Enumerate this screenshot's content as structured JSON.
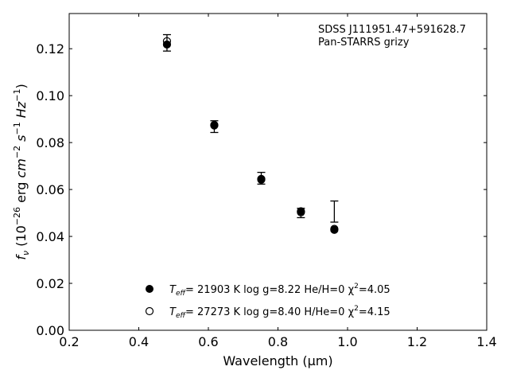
{
  "chart_data": {
    "type": "scatter",
    "title": "",
    "xlabel": "Wavelength (µm)",
    "ylabel": "f_ν (10^-26 erg cm^-2 s^-1 Hz^-1)",
    "xlim": [
      0.2,
      1.4
    ],
    "ylim": [
      0.0,
      0.135
    ],
    "xticks": [
      "0.2",
      "0.4",
      "0.6",
      "0.8",
      "1.0",
      "1.2",
      "1.4"
    ],
    "yticks": [
      "0.00",
      "0.02",
      "0.04",
      "0.06",
      "0.08",
      "0.10",
      "0.12"
    ],
    "grid": false,
    "legend_position": "bottom-center",
    "annotations": [
      "SDSS J111951.47+591628.7",
      "Pan-STARRS grizy"
    ],
    "observed": {
      "x": [
        0.481,
        0.617,
        0.752,
        0.866,
        0.962
      ],
      "y": [
        0.1225,
        0.0868,
        0.0648,
        0.05,
        0.0506
      ],
      "yerr": [
        0.0035,
        0.0025,
        0.0025,
        0.002,
        0.0045
      ]
    },
    "series": [
      {
        "name": "T_eff= 21903 K  log g=8.22  He/H=0  χ²=4.05",
        "marker": "filled-circle",
        "x": [
          0.481,
          0.617,
          0.752,
          0.866,
          0.962
        ],
        "y": [
          0.1218,
          0.0873,
          0.0645,
          0.0507,
          0.0428
        ]
      },
      {
        "name": "T_eff= 27273 K  log g=8.40  H/He=0  χ²=4.15",
        "marker": "open-circle",
        "x": [
          0.481,
          0.617,
          0.752,
          0.866,
          0.962
        ],
        "y": [
          0.1232,
          0.0875,
          0.0642,
          0.0503,
          0.0432
        ]
      }
    ]
  },
  "legend": [
    {
      "prefix": "T",
      "sub": "eff",
      "text": "= 21903 K  log g=8.22  He/H=0  χ",
      "sup": "2",
      "tail": "=4.05"
    },
    {
      "prefix": "T",
      "sub": "eff",
      "text": "= 27273 K  log g=8.40  H/He=0  χ",
      "sup": "2",
      "tail": "=4.15"
    }
  ],
  "ylabel_parts": {
    "f": "f",
    "nu": "ν",
    "a": " (10",
    "e1": "−26",
    "b": " erg ",
    "cm": "cm",
    "e2": "−2",
    "s": " s",
    "e3": "−1",
    "hz": " Hz",
    "e4": "−1",
    "c": ")"
  },
  "colors": {
    "marker": "#000000",
    "axes": "#000000",
    "background": "#ffffff"
  }
}
